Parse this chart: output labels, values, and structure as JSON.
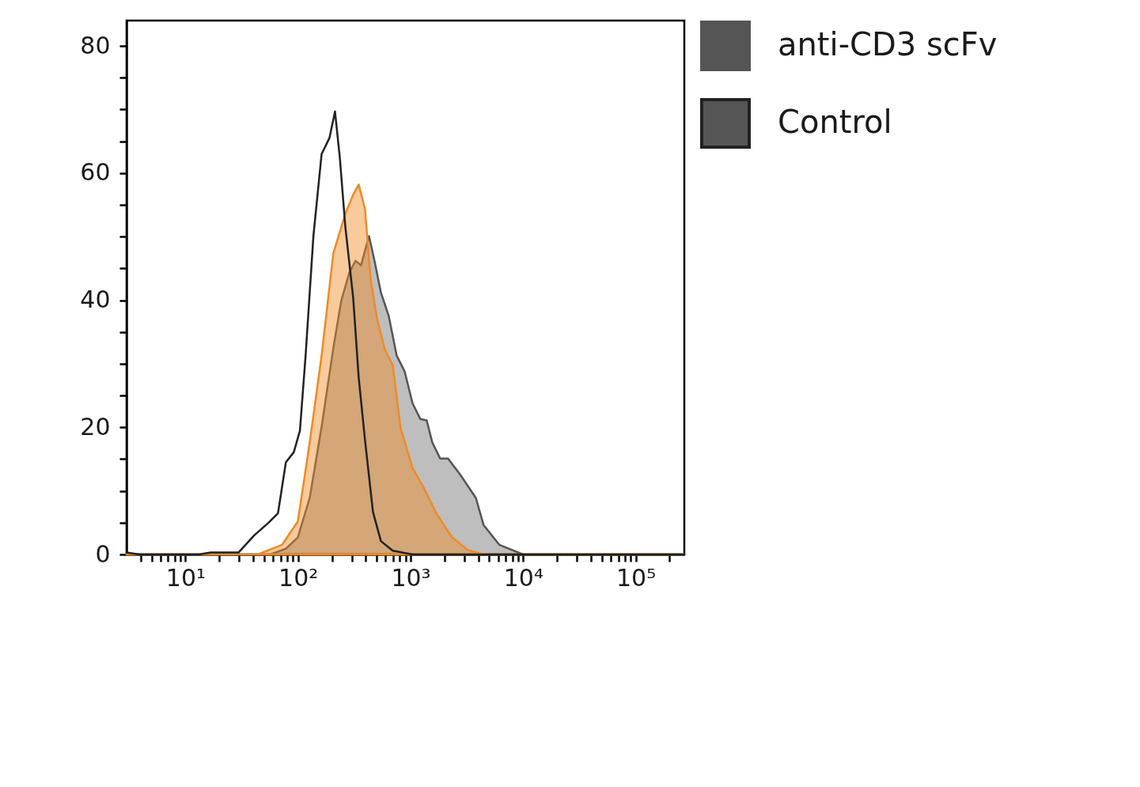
{
  "chart_data": {
    "type": "area",
    "xlim": [
      3,
      270000
    ],
    "ylim": [
      0,
      84
    ],
    "log": "x",
    "grid": false,
    "legend": "top right",
    "xticks": [
      {
        "value": 4,
        "label": null
      },
      {
        "value": 5,
        "label": null
      },
      {
        "value": 6,
        "label": null
      },
      {
        "value": 7,
        "label": null
      },
      {
        "value": 8,
        "label": null
      },
      {
        "value": 9,
        "label": null
      },
      {
        "value": 10,
        "label": "10¹"
      },
      {
        "value": 20,
        "label": null
      },
      {
        "value": 30,
        "label": null
      },
      {
        "value": 40,
        "label": null
      },
      {
        "value": 50,
        "label": null
      },
      {
        "value": 60,
        "label": null
      },
      {
        "value": 70,
        "label": null
      },
      {
        "value": 80,
        "label": null
      },
      {
        "value": 90,
        "label": null
      },
      {
        "value": 100,
        "label": "10²"
      },
      {
        "value": 200,
        "label": null
      },
      {
        "value": 300,
        "label": null
      },
      {
        "value": 400,
        "label": null
      },
      {
        "value": 500,
        "label": null
      },
      {
        "value": 600,
        "label": null
      },
      {
        "value": 700,
        "label": null
      },
      {
        "value": 800,
        "label": null
      },
      {
        "value": 900,
        "label": null
      },
      {
        "value": 1000,
        "label": "10³"
      },
      {
        "value": 2000,
        "label": null
      },
      {
        "value": 3000,
        "label": null
      },
      {
        "value": 4000,
        "label": null
      },
      {
        "value": 5000,
        "label": null
      },
      {
        "value": 6000,
        "label": null
      },
      {
        "value": 7000,
        "label": null
      },
      {
        "value": 8000,
        "label": null
      },
      {
        "value": 9000,
        "label": null
      },
      {
        "value": 10000,
        "label": "10⁴"
      },
      {
        "value": 20000,
        "label": null
      },
      {
        "value": 30000,
        "label": null
      },
      {
        "value": 40000,
        "label": null
      },
      {
        "value": 50000,
        "label": null
      },
      {
        "value": 60000,
        "label": null
      },
      {
        "value": 70000,
        "label": null
      },
      {
        "value": 80000,
        "label": null
      },
      {
        "value": 90000,
        "label": null
      },
      {
        "value": 100000,
        "label": "10⁵"
      },
      {
        "value": 200000,
        "label": null
      }
    ],
    "yticks": [
      0,
      {
        "value": 5,
        "label": null
      },
      {
        "value": 10,
        "label": null
      },
      {
        "value": 15,
        "label": null
      },
      20,
      {
        "value": 25,
        "label": null
      },
      {
        "value": 30,
        "label": null
      },
      {
        "value": 35,
        "label": null
      },
      40,
      {
        "value": 45,
        "label": null
      },
      {
        "value": 50,
        "label": null
      },
      {
        "value": 55,
        "label": null
      },
      60,
      {
        "value": 65,
        "label": null
      },
      {
        "value": 70,
        "label": null
      },
      {
        "value": 75,
        "label": null
      },
      80
    ],
    "series": [
      {
        "name": "anti-CD3 scFv",
        "color": "#555555",
        "x": [
          3,
          56.5,
          78,
          99.6,
          127,
          162,
          206,
          242,
          285,
          324,
          363,
          427,
          478,
          545,
          640,
          752,
          885,
          1040,
          1222,
          1390,
          1560,
          1830,
          2150,
          2750,
          3800,
          4460,
          6160,
          10000,
          270000
        ],
        "values": [
          0,
          0,
          0.9,
          2.7,
          8.9,
          20.1,
          32.5,
          39.9,
          44.3,
          46.2,
          45.5,
          50.1,
          46.2,
          41.2,
          37.5,
          31.3,
          28.8,
          23.8,
          21.3,
          21.1,
          17.6,
          15.1,
          15.1,
          12.6,
          8.9,
          4.6,
          1.5,
          0,
          0
        ]
      },
      {
        "color": "#f08a24",
        "x": [
          3,
          44,
          72,
          99.6,
          127,
          162,
          206,
          263,
          309,
          346,
          394,
          441,
          502,
          590,
          694,
          815,
          1040,
          1325,
          1690,
          2330,
          3230,
          4460,
          270000
        ],
        "values": [
          0,
          0,
          1.5,
          5.2,
          17.6,
          31.3,
          47.4,
          53.6,
          56.6,
          58.2,
          54.3,
          43.4,
          37.2,
          32.3,
          29.8,
          19.9,
          13.6,
          10.3,
          6.5,
          2.7,
          0.7,
          0,
          0
        ]
      },
      {
        "name": "Control",
        "type": "line",
        "color": "#222222",
        "x": [
          3,
          3.9,
          13.2,
          16.8,
          29.6,
          40.8,
          54.7,
          66.4,
          78,
          91.8,
          104,
          117,
          137,
          162,
          190,
          213,
          235,
          263,
          309,
          346,
          394,
          463,
          545,
          694,
          1040,
          270000
        ],
        "values": [
          0.3,
          0,
          0,
          0.3,
          0.3,
          3,
          5,
          6.5,
          14.5,
          16.1,
          19.5,
          31.5,
          50.1,
          63,
          65.5,
          69.7,
          62.5,
          51.6,
          40.4,
          27.8,
          17.9,
          6.7,
          2.1,
          0.6,
          0,
          0
        ]
      }
    ]
  }
}
